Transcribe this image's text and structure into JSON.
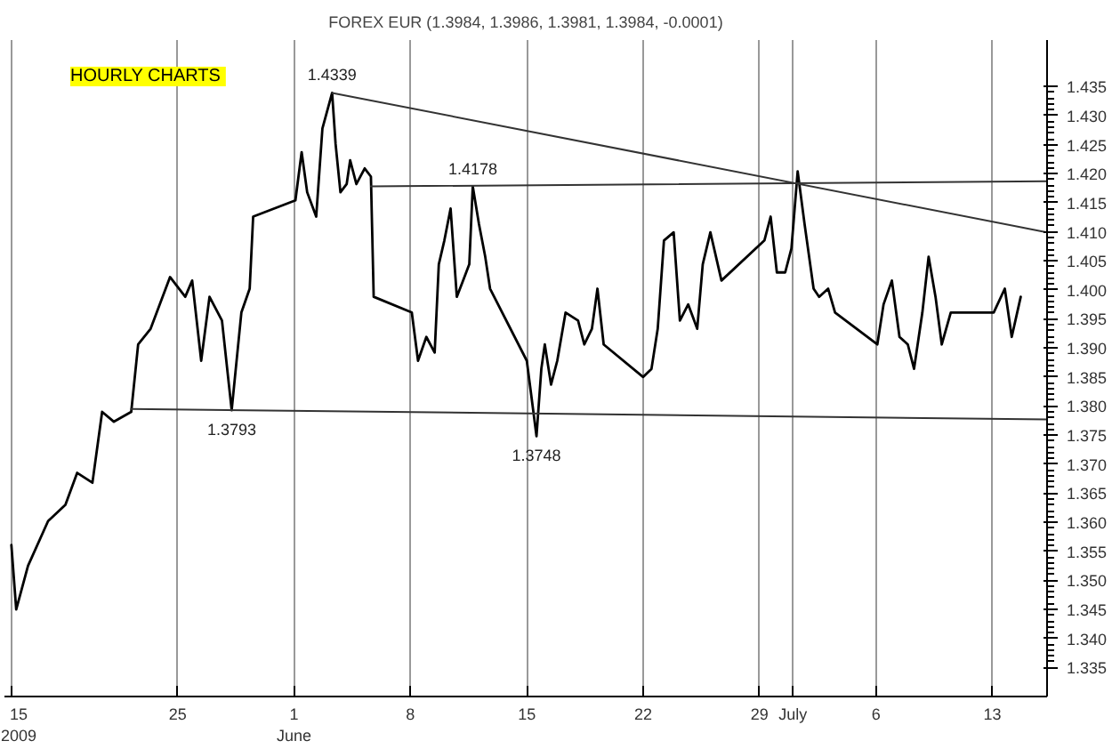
{
  "chart_data": {
    "type": "line",
    "title": "FOREX EUR (1.3984, 1.3986, 1.3981, 1.3984, -0.0001)",
    "x": [
      "2009-05-15T00:00",
      "2009-05-15T07:00",
      "2009-05-16T00:00",
      "2009-05-17T05:00",
      "2009-05-18T06:00",
      "2009-05-18T23:00",
      "2009-05-19T21:00",
      "2009-05-20T11:00",
      "2009-05-21T04:00",
      "2009-05-22T05:00",
      "2009-05-22T15:00",
      "2009-05-23T09:00",
      "2009-05-24T13:00",
      "2009-05-25T11:00",
      "2009-05-25T21:00",
      "2009-05-26T10:00",
      "2009-05-26T22:00",
      "2009-05-27T16:00",
      "2009-05-28T02:00",
      "2009-05-28T06:00",
      "2009-05-28T20:00",
      "2009-05-29T08:00",
      "2009-05-29T13:00",
      "2009-06-01T02:00",
      "2009-06-01T11:00",
      "2009-06-01T19:00",
      "2009-06-02T08:00",
      "2009-06-02T17:00",
      "2009-06-03T07:00",
      "2009-06-03T12:00",
      "2009-06-03T19:00",
      "2009-06-04T04:00",
      "2009-06-04T09:00",
      "2009-06-04T18:00",
      "2009-06-05T06:00",
      "2009-06-05T15:00",
      "2009-06-05T19:00",
      "2009-06-08T02:00",
      "2009-06-08T11:00",
      "2009-06-08T23:00",
      "2009-06-09T11:00",
      "2009-06-09T17:00",
      "2009-06-10T01:00",
      "2009-06-10T10:00",
      "2009-06-10T19:00",
      "2009-06-11T04:00",
      "2009-06-11T13:00",
      "2009-06-11T18:00",
      "2009-06-12T03:00",
      "2009-06-12T12:00",
      "2009-06-12T19:00",
      "2009-06-15T00:00",
      "2009-06-15T09:00",
      "2009-06-15T14:00",
      "2009-06-15T21:00",
      "2009-06-16T02:00",
      "2009-06-16T11:00",
      "2009-06-16T20:00",
      "2009-06-17T08:00",
      "2009-06-18T02:00",
      "2009-06-18T11:00",
      "2009-06-18T22:00",
      "2009-06-19T06:00",
      "2009-06-19T15:00",
      "2009-06-22T00:00",
      "2009-06-22T12:00",
      "2009-06-22T21:00",
      "2009-06-23T06:00",
      "2009-06-23T20:00",
      "2009-06-24T05:00",
      "2009-06-24T17:00",
      "2009-06-25T06:00",
      "2009-06-25T14:00",
      "2009-06-26T01:00",
      "2009-06-26T17:00",
      "2009-06-29T07:00",
      "2009-06-29T16:00",
      "2009-06-30T01:00",
      "2009-06-30T13:00",
      "2009-06-30T22:00",
      "2009-07-01T07:00",
      "2009-07-01T17:00",
      "2009-07-02T06:00",
      "2009-07-02T14:00",
      "2009-07-03T03:00",
      "2009-07-03T13:00",
      "2009-07-06T02:00",
      "2009-07-06T11:00",
      "2009-07-06T23:00",
      "2009-07-07T10:00",
      "2009-07-07T22:00",
      "2009-07-08T07:00",
      "2009-07-08T19:00",
      "2009-07-09T04:00",
      "2009-07-09T14:00",
      "2009-07-09T23:00",
      "2009-07-10T12:00",
      "2009-07-13T02:00",
      "2009-07-13T18:00",
      "2009-07-14T04:00",
      "2009-07-14T17:00"
    ],
    "series": [
      {
        "color": "#000000",
        "values": [
          1.3561,
          1.345,
          1.3525,
          1.3602,
          1.363,
          1.3685,
          1.3668,
          1.379,
          1.3773,
          1.379,
          1.3906,
          1.3933,
          1.4022,
          1.3988,
          1.4016,
          1.3878,
          1.3988,
          1.3947,
          1.3837,
          1.3793,
          1.3961,
          1.4002,
          1.4126,
          1.4154,
          1.4237,
          1.4168,
          1.4126,
          1.4278,
          1.4339,
          1.4251,
          1.4168,
          1.4182,
          1.4223,
          1.4182,
          1.4209,
          1.4195,
          1.3988,
          1.3961,
          1.3878,
          1.3919,
          1.3892,
          1.4044,
          1.4085,
          1.414,
          1.3988,
          1.4016,
          1.4044,
          1.4178,
          1.4113,
          1.4057,
          1.4002,
          1.3878,
          1.3795,
          1.3748,
          1.3864,
          1.3906,
          1.3837,
          1.3878,
          1.3961,
          1.3947,
          1.3906,
          1.3933,
          1.4002,
          1.3906,
          1.385,
          1.3864,
          1.3933,
          1.4085,
          1.4099,
          1.3947,
          1.3975,
          1.3933,
          1.4044,
          1.4099,
          1.4016,
          1.4085,
          1.4126,
          1.403,
          1.403,
          1.4071,
          1.4204,
          1.4113,
          1.4002,
          1.3988,
          1.4002,
          1.3961,
          1.3906,
          1.3975,
          1.4016,
          1.3919,
          1.3906,
          1.3864,
          1.3961,
          1.4057,
          1.3988,
          1.3906,
          1.3961,
          1.3961,
          1.4002,
          1.3919,
          1.3988
        ]
      },
      {
        "color": "#333333",
        "x": [
          "2009-06-03T07:00",
          "2009-07-16T07:00"
        ],
        "values": [
          1.4339,
          1.4099
        ]
      },
      {
        "color": "#333333",
        "x": [
          "2009-06-05T15:00",
          "2009-07-16T07:00"
        ],
        "values": [
          1.4178,
          1.4187
        ]
      },
      {
        "color": "#333333",
        "x": [
          "2009-05-22T05:00",
          "2009-07-16T07:00"
        ],
        "values": [
          1.3795,
          1.3777
        ]
      }
    ],
    "annotations": [
      "HOURLY  CHARTS",
      {
        "text": "1.4339",
        "x": "2009-06-03T07:00",
        "y": 1.4339
      },
      {
        "text": "1.4178",
        "x": "2009-06-11T18:00",
        "y": 1.4178
      },
      {
        "text": "1.3793",
        "x": "2009-05-28T06:00",
        "y": 1.3793
      },
      {
        "text": "1.3748",
        "x": "2009-06-15T14:00",
        "y": 1.3748
      }
    ],
    "xlim": [
      "2009-05-14T14:00",
      "2009-07-16T07:00"
    ],
    "xticks": [
      {
        "value": "2009-05-15",
        "label": "15\n2009"
      },
      {
        "value": "2009-05-25",
        "label": "25"
      },
      {
        "value": "2009-06-01",
        "label": "1\nJune"
      },
      {
        "value": "2009-06-08",
        "label": "8"
      },
      {
        "value": "2009-06-15",
        "label": "15"
      },
      {
        "value": "2009-06-22",
        "label": "22"
      },
      {
        "value": "2009-06-29",
        "label": "29"
      },
      {
        "value": "2009-07-01",
        "label": "July"
      },
      {
        "value": "2009-07-06",
        "label": "6"
      },
      {
        "value": "2009-07-13",
        "label": "13"
      }
    ],
    "ylim": [
      1.33,
      1.443
    ],
    "yticks": [
      1.335,
      {
        "value": 1.34,
        "label": "1.340"
      },
      1.345,
      {
        "value": 1.35,
        "label": "1.350"
      },
      1.355,
      {
        "value": 1.36,
        "label": "1.360"
      },
      1.365,
      {
        "value": 1.37,
        "label": "1.370"
      },
      1.375,
      {
        "value": 1.38,
        "label": "1.380"
      },
      1.385,
      {
        "value": 1.39,
        "label": "1.390"
      },
      1.395,
      {
        "value": 1.4,
        "label": "1.400"
      },
      1.405,
      {
        "value": 1.41,
        "label": "1.410"
      },
      1.415,
      {
        "value": 1.42,
        "label": "1.420"
      },
      1.425,
      {
        "value": 1.43,
        "label": "1.430"
      },
      1.435
    ],
    "grid": "x",
    "line_style": "solid"
  }
}
